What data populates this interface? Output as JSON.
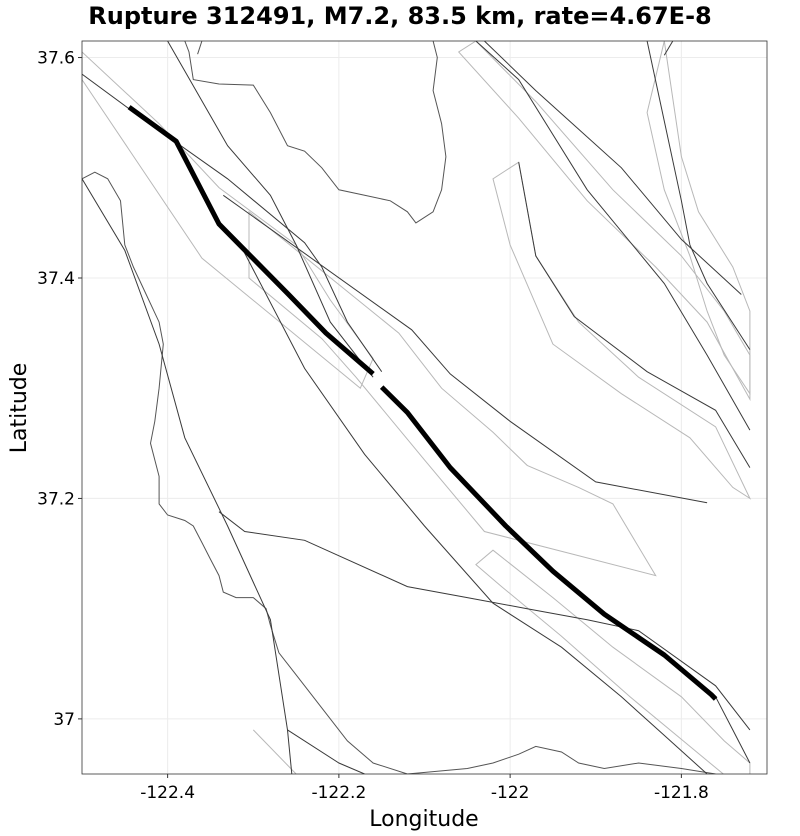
{
  "title": "Rupture 312491, M7.2, 83.5 km, rate=4.67E-8",
  "x_axis": {
    "label": "Longitude",
    "ticks": [
      {
        "value": -122.4,
        "label": "-122.4"
      },
      {
        "value": -122.2,
        "label": "-122.2"
      },
      {
        "value": -122.0,
        "label": "-122"
      },
      {
        "value": -121.8,
        "label": "-121.8"
      }
    ],
    "range": [
      -122.5,
      -121.7
    ]
  },
  "y_axis": {
    "label": "Latitude",
    "ticks": [
      {
        "value": 37.0,
        "label": "37"
      },
      {
        "value": 37.2,
        "label": "37.2"
      },
      {
        "value": 37.4,
        "label": "37.4"
      },
      {
        "value": 37.6,
        "label": "37.6"
      }
    ],
    "range": [
      36.95,
      37.615
    ]
  },
  "colors": {
    "rupture": "#000000",
    "fault_trace": "#3a3a3a",
    "fault_polygon": "#b8b8b8",
    "coastline": "#555555",
    "grid": "#ececec"
  },
  "rupture_trace": [
    [
      -122.445,
      37.555
    ],
    [
      -122.39,
      37.524
    ],
    [
      -122.34,
      37.449
    ],
    [
      -122.26,
      37.386
    ],
    [
      -122.215,
      37.35
    ],
    [
      -122.16,
      37.313
    ],
    [
      -122.15,
      37.301
    ],
    [
      -122.12,
      37.278
    ],
    [
      -122.07,
      37.228
    ],
    [
      -122.005,
      37.175
    ],
    [
      -121.95,
      37.134
    ],
    [
      -121.89,
      37.095
    ],
    [
      -121.82,
      37.058
    ],
    [
      -121.765,
      37.022
    ],
    [
      -121.76,
      37.018
    ]
  ],
  "fault_traces": [
    [
      [
        -122.5,
        37.585
      ],
      [
        -122.43,
        37.545
      ],
      [
        -122.33,
        37.49
      ],
      [
        -122.24,
        37.432
      ],
      [
        -122.22,
        37.41
      ],
      [
        -122.19,
        37.36
      ],
      [
        -122.15,
        37.315
      ]
    ],
    [
      [
        -122.4,
        37.615
      ],
      [
        -122.33,
        37.52
      ],
      [
        -122.28,
        37.475
      ],
      [
        -122.25,
        37.43
      ],
      [
        -122.21,
        37.36
      ],
      [
        -122.16,
        37.31
      ]
    ],
    [
      [
        -122.335,
        37.475
      ],
      [
        -122.115,
        37.353
      ],
      [
        -122.07,
        37.313
      ],
      [
        -122.0,
        37.27
      ],
      [
        -121.9,
        37.215
      ],
      [
        -121.77,
        37.196
      ]
    ],
    [
      [
        -122.04,
        37.615
      ],
      [
        -121.99,
        37.58
      ],
      [
        -121.91,
        37.48
      ],
      [
        -121.82,
        37.395
      ],
      [
        -121.77,
        37.33
      ],
      [
        -121.72,
        37.262
      ]
    ],
    [
      [
        -122.03,
        37.615
      ],
      [
        -121.97,
        37.57
      ],
      [
        -121.87,
        37.5
      ],
      [
        -121.8,
        37.435
      ],
      [
        -121.73,
        37.385
      ]
    ],
    [
      [
        -121.82,
        37.602
      ],
      [
        -121.81,
        37.615
      ]
    ],
    [
      [
        -121.84,
        37.615
      ],
      [
        -121.8,
        37.47
      ],
      [
        -121.79,
        37.43
      ],
      [
        -121.77,
        37.395
      ],
      [
        -121.72,
        37.335
      ]
    ],
    [
      [
        -121.99,
        37.505
      ],
      [
        -121.97,
        37.42
      ],
      [
        -121.925,
        37.365
      ],
      [
        -121.84,
        37.315
      ],
      [
        -121.76,
        37.28
      ],
      [
        -121.72,
        37.228
      ]
    ],
    [
      [
        -122.5,
        37.49
      ],
      [
        -122.45,
        37.425
      ],
      [
        -122.41,
        37.34
      ],
      [
        -122.38,
        37.255
      ],
      [
        -122.33,
        37.175
      ],
      [
        -122.28,
        37.09
      ],
      [
        -122.26,
        36.99
      ],
      [
        -122.255,
        36.95
      ]
    ],
    [
      [
        -122.34,
        37.188
      ],
      [
        -122.31,
        37.17
      ],
      [
        -122.24,
        37.162
      ],
      [
        -122.12,
        37.12
      ],
      [
        -122.05,
        37.11
      ],
      [
        -121.98,
        37.1
      ],
      [
        -121.91,
        37.09
      ],
      [
        -121.85,
        37.08
      ],
      [
        -121.76,
        37.03
      ],
      [
        -121.72,
        36.99
      ]
    ],
    [
      [
        -122.315,
        37.43
      ],
      [
        -122.24,
        37.318
      ],
      [
        -122.17,
        37.24
      ],
      [
        -122.1,
        37.175
      ],
      [
        -122.02,
        37.105
      ],
      [
        -121.98,
        37.085
      ],
      [
        -121.94,
        37.065
      ],
      [
        -121.87,
        37.02
      ],
      [
        -121.82,
        36.985
      ],
      [
        -121.77,
        36.95
      ]
    ],
    [
      [
        -122.26,
        36.99
      ],
      [
        -122.2,
        36.96
      ],
      [
        -122.17,
        36.95
      ]
    ],
    [
      [
        -121.76,
        37.02
      ],
      [
        -121.74,
        36.99
      ],
      [
        -121.72,
        36.96
      ]
    ]
  ],
  "fault_polygons": [
    [
      [
        -122.5,
        37.605
      ],
      [
        -122.41,
        37.54
      ],
      [
        -122.34,
        37.482
      ],
      [
        -122.25,
        37.43
      ],
      [
        -122.21,
        37.38
      ],
      [
        -122.16,
        37.327
      ],
      [
        -122.175,
        37.3
      ],
      [
        -122.36,
        37.418
      ],
      [
        -122.5,
        37.58
      ]
    ],
    [
      [
        -122.305,
        37.46
      ],
      [
        -122.13,
        37.35
      ],
      [
        -122.08,
        37.3
      ],
      [
        -122.02,
        37.26
      ],
      [
        -121.98,
        37.23
      ],
      [
        -121.92,
        37.21
      ],
      [
        -121.88,
        37.195
      ],
      [
        -121.83,
        37.13
      ],
      [
        -121.93,
        37.15
      ],
      [
        -122.03,
        37.17
      ],
      [
        -122.1,
        37.235
      ],
      [
        -122.18,
        37.31
      ],
      [
        -122.22,
        37.345
      ],
      [
        -122.305,
        37.4
      ]
    ],
    [
      [
        -121.99,
        37.505
      ],
      [
        -121.97,
        37.42
      ],
      [
        -121.92,
        37.36
      ],
      [
        -121.85,
        37.31
      ],
      [
        -121.76,
        37.265
      ],
      [
        -121.72,
        37.2
      ],
      [
        -121.74,
        37.21
      ],
      [
        -121.79,
        37.255
      ],
      [
        -121.87,
        37.295
      ],
      [
        -121.95,
        37.34
      ],
      [
        -122.0,
        37.43
      ],
      [
        -122.02,
        37.49
      ]
    ],
    [
      [
        -122.04,
        37.615
      ],
      [
        -121.97,
        37.56
      ],
      [
        -121.88,
        37.48
      ],
      [
        -121.8,
        37.42
      ],
      [
        -121.75,
        37.37
      ],
      [
        -121.72,
        37.33
      ],
      [
        -121.72,
        37.29
      ],
      [
        -121.77,
        37.36
      ],
      [
        -121.83,
        37.41
      ],
      [
        -121.91,
        37.47
      ],
      [
        -121.99,
        37.545
      ],
      [
        -122.06,
        37.605
      ]
    ],
    [
      [
        -121.82,
        37.615
      ],
      [
        -121.8,
        37.51
      ],
      [
        -121.78,
        37.46
      ],
      [
        -121.74,
        37.41
      ],
      [
        -121.72,
        37.37
      ],
      [
        -121.72,
        37.295
      ],
      [
        -121.75,
        37.33
      ],
      [
        -121.77,
        37.37
      ],
      [
        -121.79,
        37.42
      ],
      [
        -121.82,
        37.48
      ],
      [
        -121.84,
        37.55
      ]
    ],
    [
      [
        -122.02,
        37.153
      ],
      [
        -121.95,
        37.11
      ],
      [
        -121.88,
        37.065
      ],
      [
        -121.8,
        37.02
      ],
      [
        -121.75,
        36.98
      ],
      [
        -121.72,
        36.96
      ],
      [
        -121.72,
        36.93
      ],
      [
        -121.79,
        36.975
      ],
      [
        -121.86,
        37.02
      ],
      [
        -121.94,
        37.075
      ],
      [
        -122.01,
        37.12
      ],
      [
        -122.04,
        37.14
      ]
    ],
    [
      [
        -122.3,
        36.99
      ],
      [
        -122.25,
        36.95
      ]
    ]
  ],
  "coastlines": [
    [
      [
        -122.5,
        37.49
      ],
      [
        -122.485,
        37.496
      ],
      [
        -122.47,
        37.49
      ],
      [
        -122.455,
        37.47
      ],
      [
        -122.45,
        37.43
      ],
      [
        -122.44,
        37.41
      ],
      [
        -122.425,
        37.385
      ],
      [
        -122.41,
        37.36
      ],
      [
        -122.405,
        37.34
      ],
      [
        -122.41,
        37.3
      ],
      [
        -122.415,
        37.27
      ],
      [
        -122.42,
        37.25
      ],
      [
        -122.415,
        37.235
      ],
      [
        -122.41,
        37.22
      ],
      [
        -122.41,
        37.195
      ],
      [
        -122.4,
        37.185
      ],
      [
        -122.38,
        37.18
      ],
      [
        -122.37,
        37.175
      ],
      [
        -122.36,
        37.16
      ],
      [
        -122.35,
        37.145
      ],
      [
        -122.34,
        37.13
      ],
      [
        -122.335,
        37.115
      ],
      [
        -122.32,
        37.11
      ],
      [
        -122.3,
        37.11
      ],
      [
        -122.285,
        37.1
      ],
      [
        -122.28,
        37.085
      ],
      [
        -122.27,
        37.06
      ],
      [
        -122.25,
        37.04
      ],
      [
        -122.22,
        37.01
      ],
      [
        -122.19,
        36.98
      ],
      [
        -122.16,
        36.96
      ],
      [
        -122.12,
        36.95
      ],
      [
        -122.05,
        36.955
      ],
      [
        -122.02,
        36.96
      ],
      [
        -121.99,
        36.968
      ],
      [
        -121.97,
        36.975
      ],
      [
        -121.94,
        36.97
      ],
      [
        -121.92,
        36.96
      ],
      [
        -121.89,
        36.955
      ],
      [
        -121.85,
        36.96
      ],
      [
        -121.8,
        36.955
      ],
      [
        -121.76,
        36.95
      ]
    ],
    [
      [
        -122.38,
        37.615
      ],
      [
        -122.375,
        37.605
      ],
      [
        -122.37,
        37.58
      ],
      [
        -122.34,
        37.576
      ],
      [
        -122.3,
        37.575
      ],
      [
        -122.28,
        37.55
      ],
      [
        -122.26,
        37.52
      ],
      [
        -122.24,
        37.515
      ],
      [
        -122.22,
        37.5
      ],
      [
        -122.2,
        37.48
      ],
      [
        -122.17,
        37.475
      ],
      [
        -122.14,
        37.47
      ],
      [
        -122.12,
        37.46
      ],
      [
        -122.11,
        37.45
      ],
      [
        -122.09,
        37.46
      ],
      [
        -122.08,
        37.48
      ],
      [
        -122.075,
        37.51
      ],
      [
        -122.08,
        37.54
      ],
      [
        -122.09,
        37.57
      ],
      [
        -122.085,
        37.6
      ],
      [
        -122.09,
        37.615
      ]
    ],
    [
      [
        -122.36,
        37.615
      ],
      [
        -122.365,
        37.603
      ]
    ]
  ]
}
